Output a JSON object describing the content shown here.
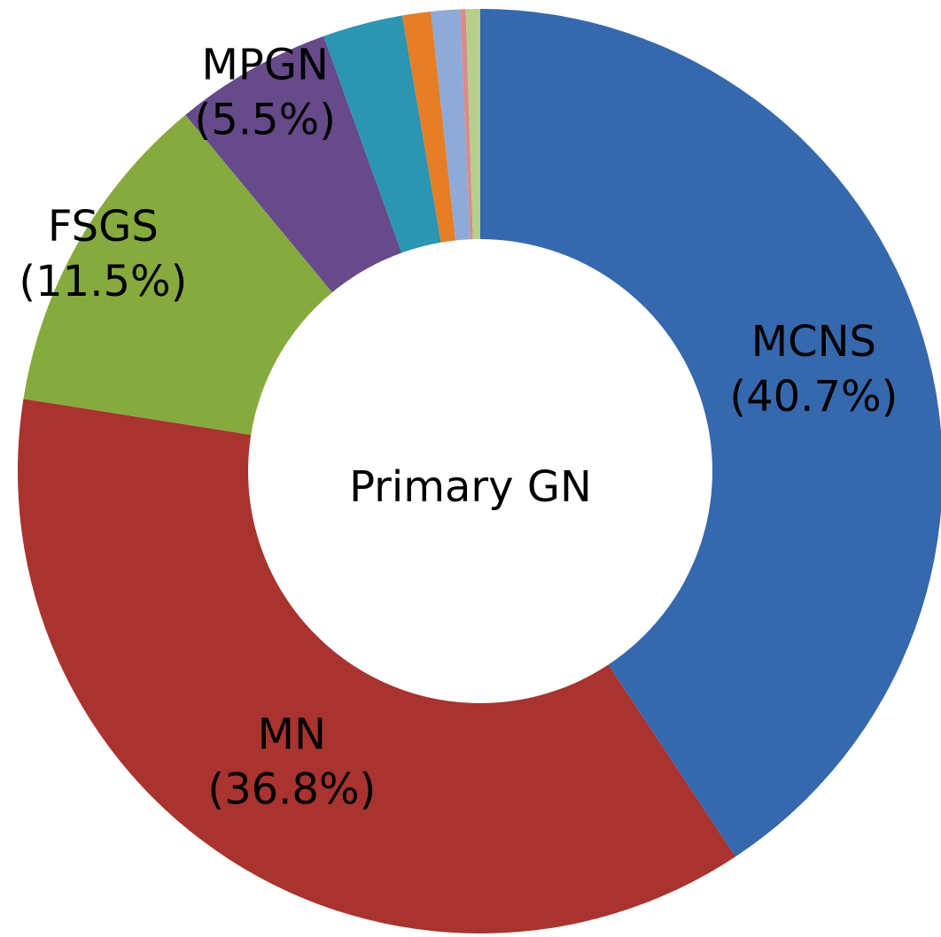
{
  "chart_data": {
    "type": "donut",
    "title": "Primary GN",
    "categories": [
      "MCNS",
      "MN",
      "FSGS",
      "MPGN",
      null,
      null,
      null,
      null,
      null
    ],
    "values": [
      40.7,
      36.8,
      11.5,
      5.5,
      2.8,
      1.0,
      1.0,
      0.2,
      0.5
    ],
    "value_labels": [
      "(40.7%)",
      "(36.8%)",
      "(11.5%)",
      "(5.5%)",
      null,
      null,
      null,
      null,
      null
    ],
    "colors": [
      "#3668ae",
      "#a8332f",
      "#87aa3e",
      "#664a8a",
      "#2b95b2",
      "#e57e25",
      "#8eaad8",
      "#d98c8c",
      "#b6cf8b"
    ]
  }
}
